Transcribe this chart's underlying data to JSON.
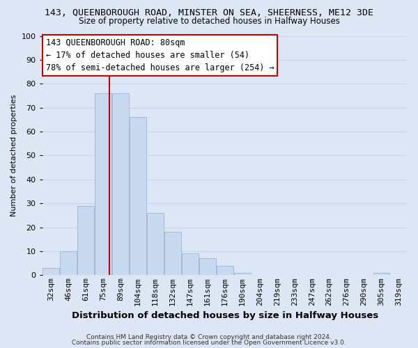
{
  "title": "143, QUEENBOROUGH ROAD, MINSTER ON SEA, SHEERNESS, ME12 3DE",
  "subtitle": "Size of property relative to detached houses in Halfway Houses",
  "xlabel": "Distribution of detached houses by size in Halfway Houses",
  "ylabel": "Number of detached properties",
  "footer_line1": "Contains HM Land Registry data © Crown copyright and database right 2024.",
  "footer_line2": "Contains public sector information licensed under the Open Government Licence v3.0.",
  "bin_labels": [
    "32sqm",
    "46sqm",
    "61sqm",
    "75sqm",
    "89sqm",
    "104sqm",
    "118sqm",
    "132sqm",
    "147sqm",
    "161sqm",
    "176sqm",
    "190sqm",
    "204sqm",
    "219sqm",
    "233sqm",
    "247sqm",
    "262sqm",
    "276sqm",
    "290sqm",
    "305sqm",
    "319sqm"
  ],
  "bar_heights": [
    3,
    10,
    29,
    76,
    76,
    66,
    26,
    18,
    9,
    7,
    4,
    1,
    0,
    0,
    0,
    0,
    0,
    0,
    0,
    1,
    0
  ],
  "bar_color": "#c9daf0",
  "bar_edge_color": "#9ab5d5",
  "property_line_bin": 4,
  "property_line_color": "#cc0000",
  "annotation_line1": "143 QUEENBOROUGH ROAD: 80sqm",
  "annotation_line2": "← 17% of detached houses are smaller (54)",
  "annotation_line3": "78% of semi-detached houses are larger (254) →",
  "annotation_box_color": "#ffffff",
  "annotation_box_edge": "#cc0000",
  "ylim": [
    0,
    100
  ],
  "yticks": [
    0,
    10,
    20,
    30,
    40,
    50,
    60,
    70,
    80,
    90,
    100
  ],
  "grid_color": "#c8d4e8",
  "background_color": "#dce6f5",
  "title_fontsize": 9.5,
  "subtitle_fontsize": 8.5,
  "xlabel_fontsize": 9.5,
  "ylabel_fontsize": 8.0,
  "tick_fontsize": 8.0,
  "footer_fontsize": 6.5
}
